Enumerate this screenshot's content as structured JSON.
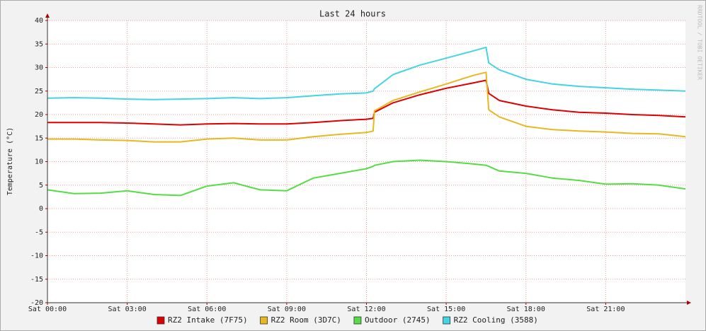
{
  "chart_data": {
    "type": "line",
    "title": "Last 24 hours",
    "y_label": "Temperature (°C)",
    "watermark": "RRDTOOL / TOBI OETIKER",
    "x": [
      0,
      1,
      2,
      3,
      4,
      5,
      6,
      7,
      8,
      9,
      10,
      11,
      12,
      12.25,
      12.3,
      13,
      14,
      15,
      16,
      16.5,
      16.6,
      17,
      18,
      19,
      20,
      21,
      22,
      23,
      24
    ],
    "xlim": [
      0,
      24
    ],
    "xticks": [
      {
        "value": 0,
        "label": "Sat 00:00"
      },
      {
        "value": 3,
        "label": "Sat 03:00"
      },
      {
        "value": 6,
        "label": "Sat 06:00"
      },
      {
        "value": 9,
        "label": "Sat 09:00"
      },
      {
        "value": 12,
        "label": "Sat 12:00"
      },
      {
        "value": 15,
        "label": "Sat 15:00"
      },
      {
        "value": 18,
        "label": "Sat 18:00"
      },
      {
        "value": 21,
        "label": "Sat 21:00"
      }
    ],
    "ylim": [
      -20,
      40
    ],
    "yticks": [
      -20,
      -15,
      -10,
      -5,
      0,
      5,
      10,
      15,
      20,
      25,
      30,
      35,
      40
    ],
    "grid": true,
    "series": [
      {
        "name": "RZ2 Intake (7F75)",
        "color": "#dd0000",
        "values": [
          18.3,
          18.3,
          18.3,
          18.2,
          18.0,
          17.8,
          18.0,
          18.1,
          18.0,
          18.0,
          18.3,
          18.7,
          19.0,
          19.2,
          20.5,
          22.5,
          24.2,
          25.6,
          26.7,
          27.3,
          24.5,
          23.0,
          21.8,
          21.0,
          20.5,
          20.3,
          20.0,
          19.8,
          19.5
        ]
      },
      {
        "name": "RZ2 Room (3D7C)",
        "color": "#e8b820",
        "values": [
          14.8,
          14.8,
          14.6,
          14.5,
          14.2,
          14.2,
          14.8,
          15.0,
          14.6,
          14.6,
          15.3,
          15.8,
          16.2,
          16.5,
          20.8,
          23.0,
          24.8,
          26.5,
          28.3,
          29.0,
          21.0,
          19.5,
          17.5,
          16.8,
          16.5,
          16.3,
          16.0,
          15.9,
          15.3
        ]
      },
      {
        "name": "Outdoor (2745)",
        "color": "#55dd44",
        "values": [
          4.0,
          3.2,
          3.3,
          3.8,
          3.0,
          2.8,
          4.8,
          5.5,
          4.0,
          3.8,
          6.5,
          7.5,
          8.5,
          9.0,
          9.2,
          10.0,
          10.3,
          10.0,
          9.5,
          9.2,
          9.0,
          8.0,
          7.5,
          6.5,
          6.0,
          5.2,
          5.3,
          5.0,
          4.2
        ]
      },
      {
        "name": "RZ2 Cooling (3588)",
        "color": "#44d4e4",
        "values": [
          23.5,
          23.6,
          23.5,
          23.3,
          23.2,
          23.3,
          23.4,
          23.6,
          23.4,
          23.6,
          24.0,
          24.4,
          24.6,
          25.0,
          25.5,
          28.5,
          30.5,
          32.0,
          33.5,
          34.3,
          31.0,
          29.5,
          27.5,
          26.5,
          26.0,
          25.7,
          25.4,
          25.2,
          25.0
        ]
      }
    ]
  }
}
